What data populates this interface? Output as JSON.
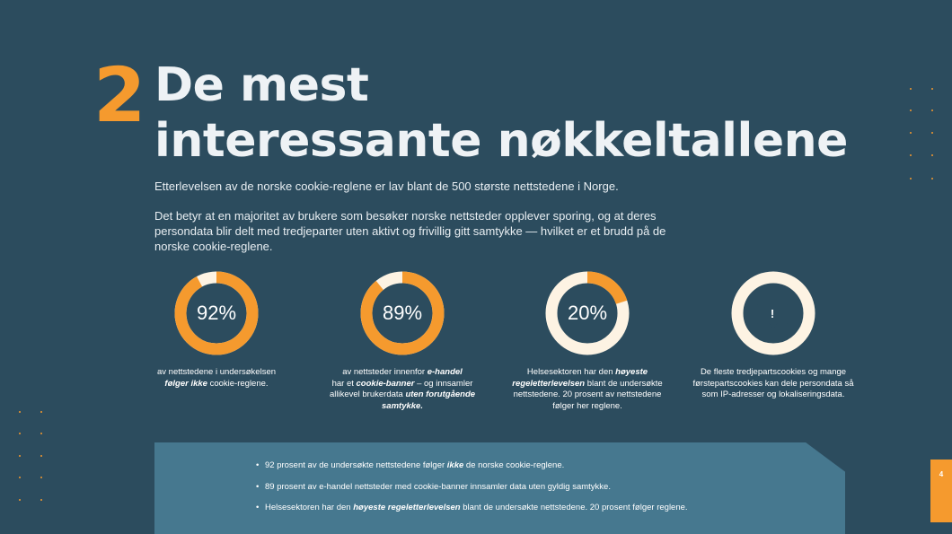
{
  "section_number": "2",
  "title_lines": [
    "De mest",
    "interessante nøkkeltallene"
  ],
  "intro": {
    "p1": "Etterlevelsen av de norske cookie-reglene er lav blant de 500 største nettstedene i Norge.",
    "p2": "Det betyr at en majoritet av brukere som besøker norske nettsteder opplever sporing, og at deres persondata blir delt med tredjeparter uten aktivt og frivillig gitt samtykke — hvilket er et brudd på de norske cookie-reglene."
  },
  "colors": {
    "background": "#2c4c5e",
    "accent": "#f59a2e",
    "ring_track": "#fdf3e3",
    "summary_box": "#46788f"
  },
  "stats": [
    {
      "value": "92%",
      "percent": 92,
      "t1": "av nettstedene i undersøkelsen",
      "t2": "følger ikke",
      "t3": " cookie-reglene."
    },
    {
      "value": "89%",
      "percent": 89,
      "t1": "av nettsteder innenfor ",
      "t2": "e-handel",
      "t3": "har et ",
      "t4": "cookie-banner",
      "t5": " – og innsamler allikevel brukerdata ",
      "t6": "uten forutgående samtykke."
    },
    {
      "value": "20%",
      "percent": 20,
      "t1": "Helsesektoren har den ",
      "t2": "høyeste regeletterlevelsen",
      "t3": " blant de undersøkte nettstedene. 20 prosent av nettstedene følger her reglene."
    },
    {
      "icon_glyph": "!",
      "icon": "info-speech-bubble-icon",
      "t1": "De fleste tredjepartscookies og mange førstepartscookies kan dele persondata så som IP-adresser og lokaliseringsdata."
    }
  ],
  "summary": [
    {
      "a": "92 prosent av de undersøkte nettstedene følger ",
      "b": "ikke",
      "c": " de norske cookie-reglene."
    },
    {
      "a": "89 prosent av e-handel nettsteder med cookie-banner innsamler data uten gyldig samtykke."
    },
    {
      "a": "Helsesektoren har den ",
      "b": "høyeste regeletterlevelsen",
      "c": " blant de undersøkte nettstedene. 20 prosent følger reglene."
    }
  ],
  "page_number": "4"
}
